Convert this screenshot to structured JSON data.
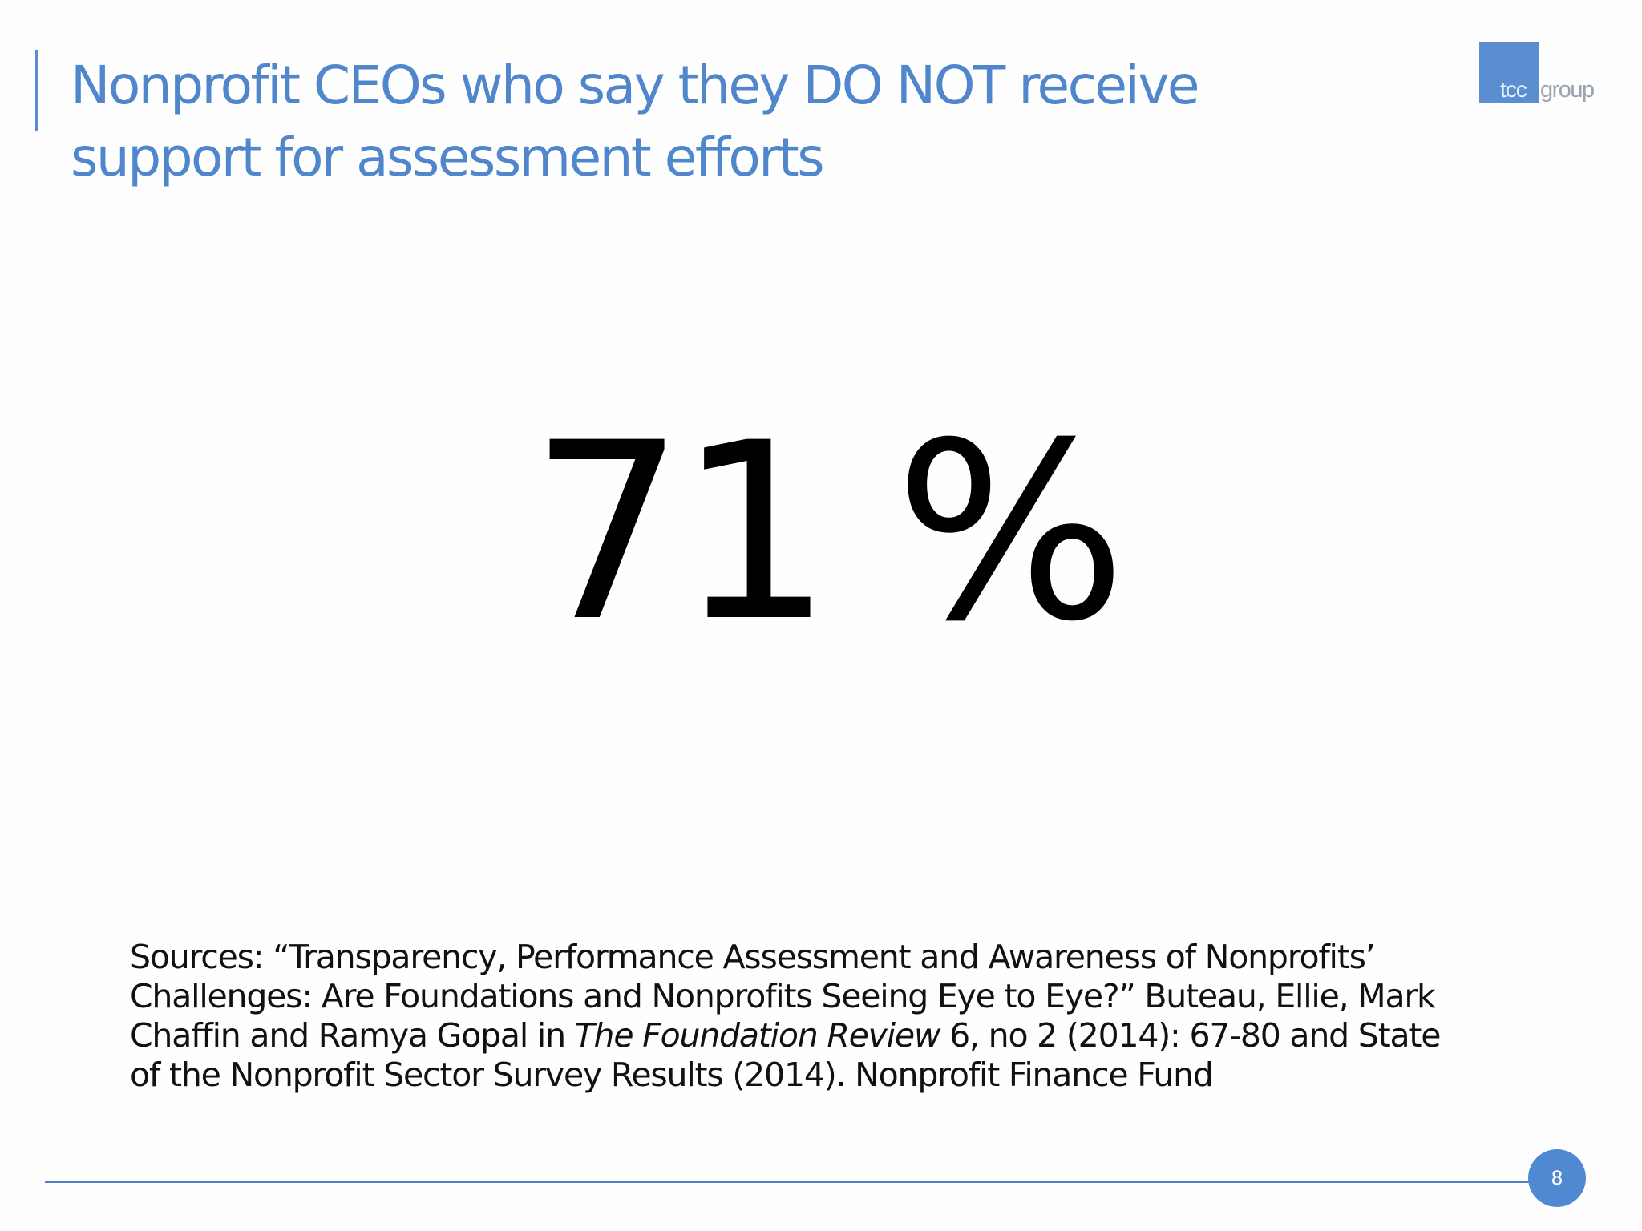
{
  "slide": {
    "title_lines": [
      "Nonprofit CEOs who say they DO NOT receive",
      "support for assessment efforts"
    ],
    "big_stat": "71 %",
    "sources": {
      "line1": "Sources: “Transparency, Performance Assessment and Awareness of Nonprofits’",
      "line2": "Challenges: Are Foundations and Nonprofits Seeing Eye to Eye?” Buteau, Ellie, Mark",
      "line3_before_italic": "Chaffin and Ramya Gopal in ",
      "line3_italic": "The Foundation Review",
      "line3_after_italic": " 6, no 2 (2014): 67-80 and State",
      "line4": "of the Nonprofit Sector Survey Results (2014).  Nonprofit Finance Fund"
    },
    "page_number": "8"
  },
  "logo": {
    "part1": "tcc",
    "part2": "group"
  },
  "colors": {
    "title": "#4f86cc",
    "accent": "#5a8ed0",
    "logo_gray": "#9aa3ad",
    "body_text": "#111111",
    "stat_text": "#000000"
  }
}
